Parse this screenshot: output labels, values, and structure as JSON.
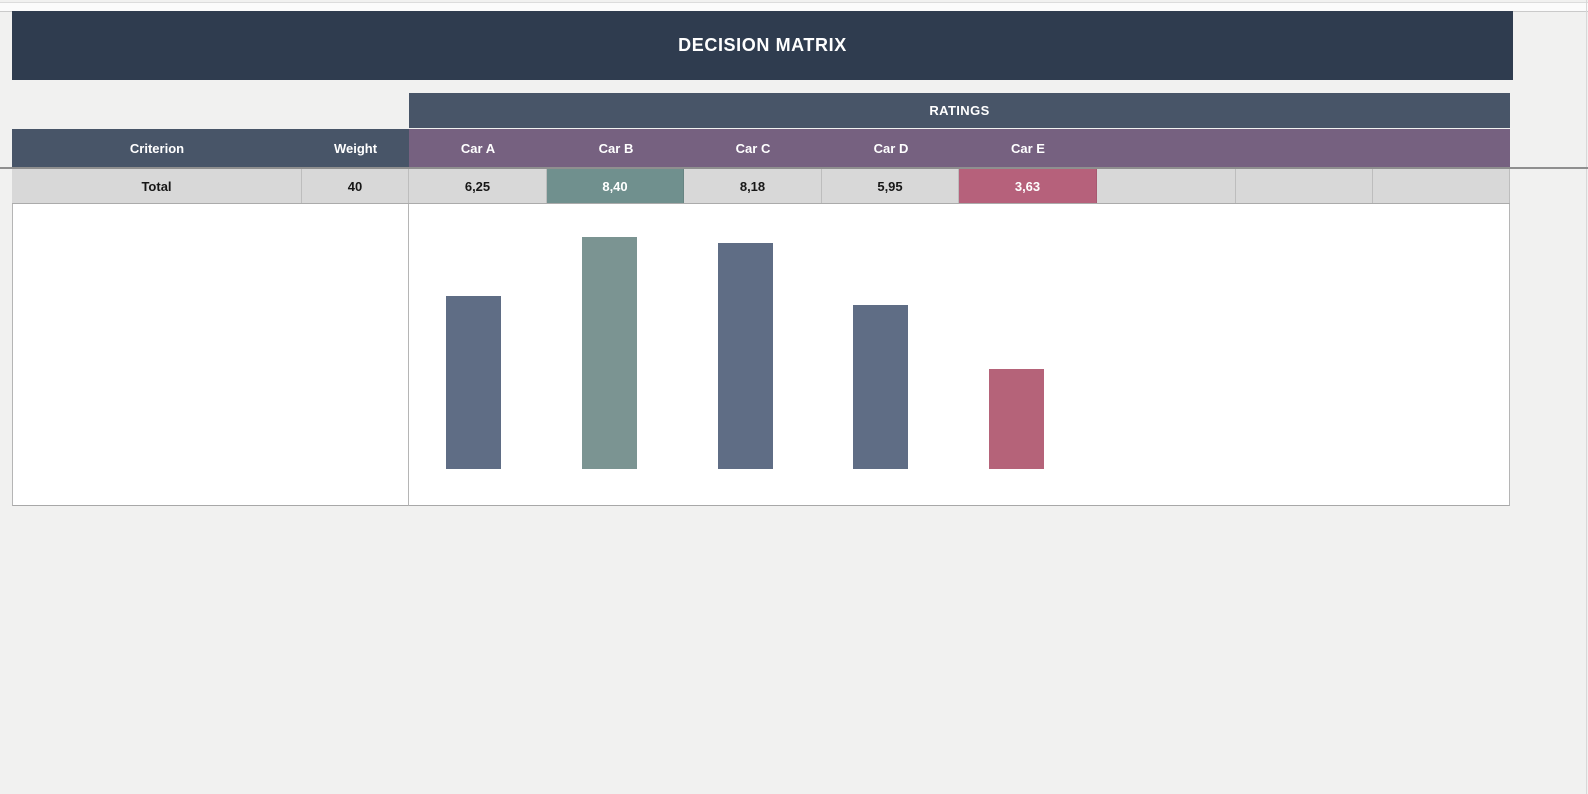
{
  "page": {
    "title": "DECISION MATRIX",
    "ratings_label": "RATINGS"
  },
  "table": {
    "criterion_header": "Criterion",
    "weight_header": "Weight",
    "car_headers": [
      "Car A",
      "Car B",
      "Car C",
      "Car D",
      "Car E"
    ],
    "total_row": {
      "label": "Total",
      "weight": "40",
      "values": [
        "6,25",
        "8,40",
        "8,18",
        "5,95",
        "3,63"
      ]
    }
  },
  "chart_data": {
    "type": "bar",
    "title": "",
    "xlabel": "",
    "ylabel": "",
    "categories": [
      "Car A",
      "Car B",
      "Car C",
      "Car D",
      "Car E"
    ],
    "values": [
      6.25,
      8.4,
      8.18,
      5.95,
      3.63
    ],
    "ylim": [
      0,
      9.6
    ],
    "grid": false,
    "legend": false,
    "axes_visible": false,
    "bar_colors": [
      "#5f6d85",
      "#7b9492",
      "#5f6d85",
      "#5f6d85",
      "#b56379"
    ]
  },
  "colors": {
    "page_bg": "#f1f1f0",
    "title_bar_bg": "#2f3c4f",
    "band_header_bg": "#485568",
    "car_header_bg": "#766180",
    "total_row_bg": "#d8d8d8",
    "best_cell_bg": "#70908e",
    "worst_cell_bg": "#b6617b",
    "bar_slate": "#5f6d85",
    "bar_teal": "#7b9492",
    "bar_rose": "#b56379"
  }
}
